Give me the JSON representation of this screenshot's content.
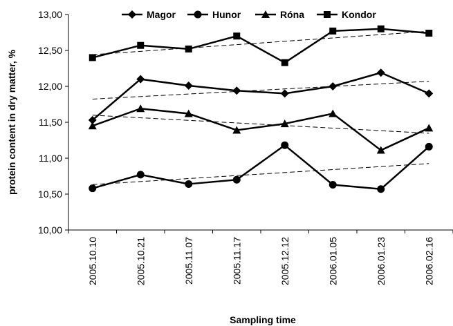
{
  "chart_data": {
    "type": "line",
    "xlabel": "Sampling time",
    "ylabel": "protein content in dry matter, %",
    "categories": [
      "2005.10.10",
      "2005.10.21",
      "2005.11.07",
      "2005.11.17",
      "2005.12.12",
      "2006.01.05",
      "2006.01.23",
      "2006.02.16"
    ],
    "y_ticks": [
      "10,00",
      "10,50",
      "11,00",
      "11,50",
      "12,00",
      "12,50",
      "13,00"
    ],
    "ylim": [
      10,
      13
    ],
    "grid": false,
    "legend_position": "top",
    "trendlines": true,
    "series": [
      {
        "name": "Magor",
        "marker": "diamond",
        "values": [
          11.53,
          12.1,
          12.01,
          11.94,
          11.9,
          12.0,
          12.19,
          11.9
        ]
      },
      {
        "name": "Hunor",
        "marker": "circle",
        "values": [
          10.58,
          10.77,
          10.64,
          10.7,
          11.18,
          10.63,
          10.57,
          11.16
        ]
      },
      {
        "name": "Róna",
        "marker": "triangle",
        "values": [
          11.45,
          11.69,
          11.62,
          11.39,
          11.48,
          11.62,
          11.11,
          11.42
        ]
      },
      {
        "name": "Kondor",
        "marker": "square",
        "values": [
          12.4,
          12.57,
          12.52,
          12.7,
          12.33,
          12.77,
          12.8,
          12.74
        ]
      }
    ]
  }
}
